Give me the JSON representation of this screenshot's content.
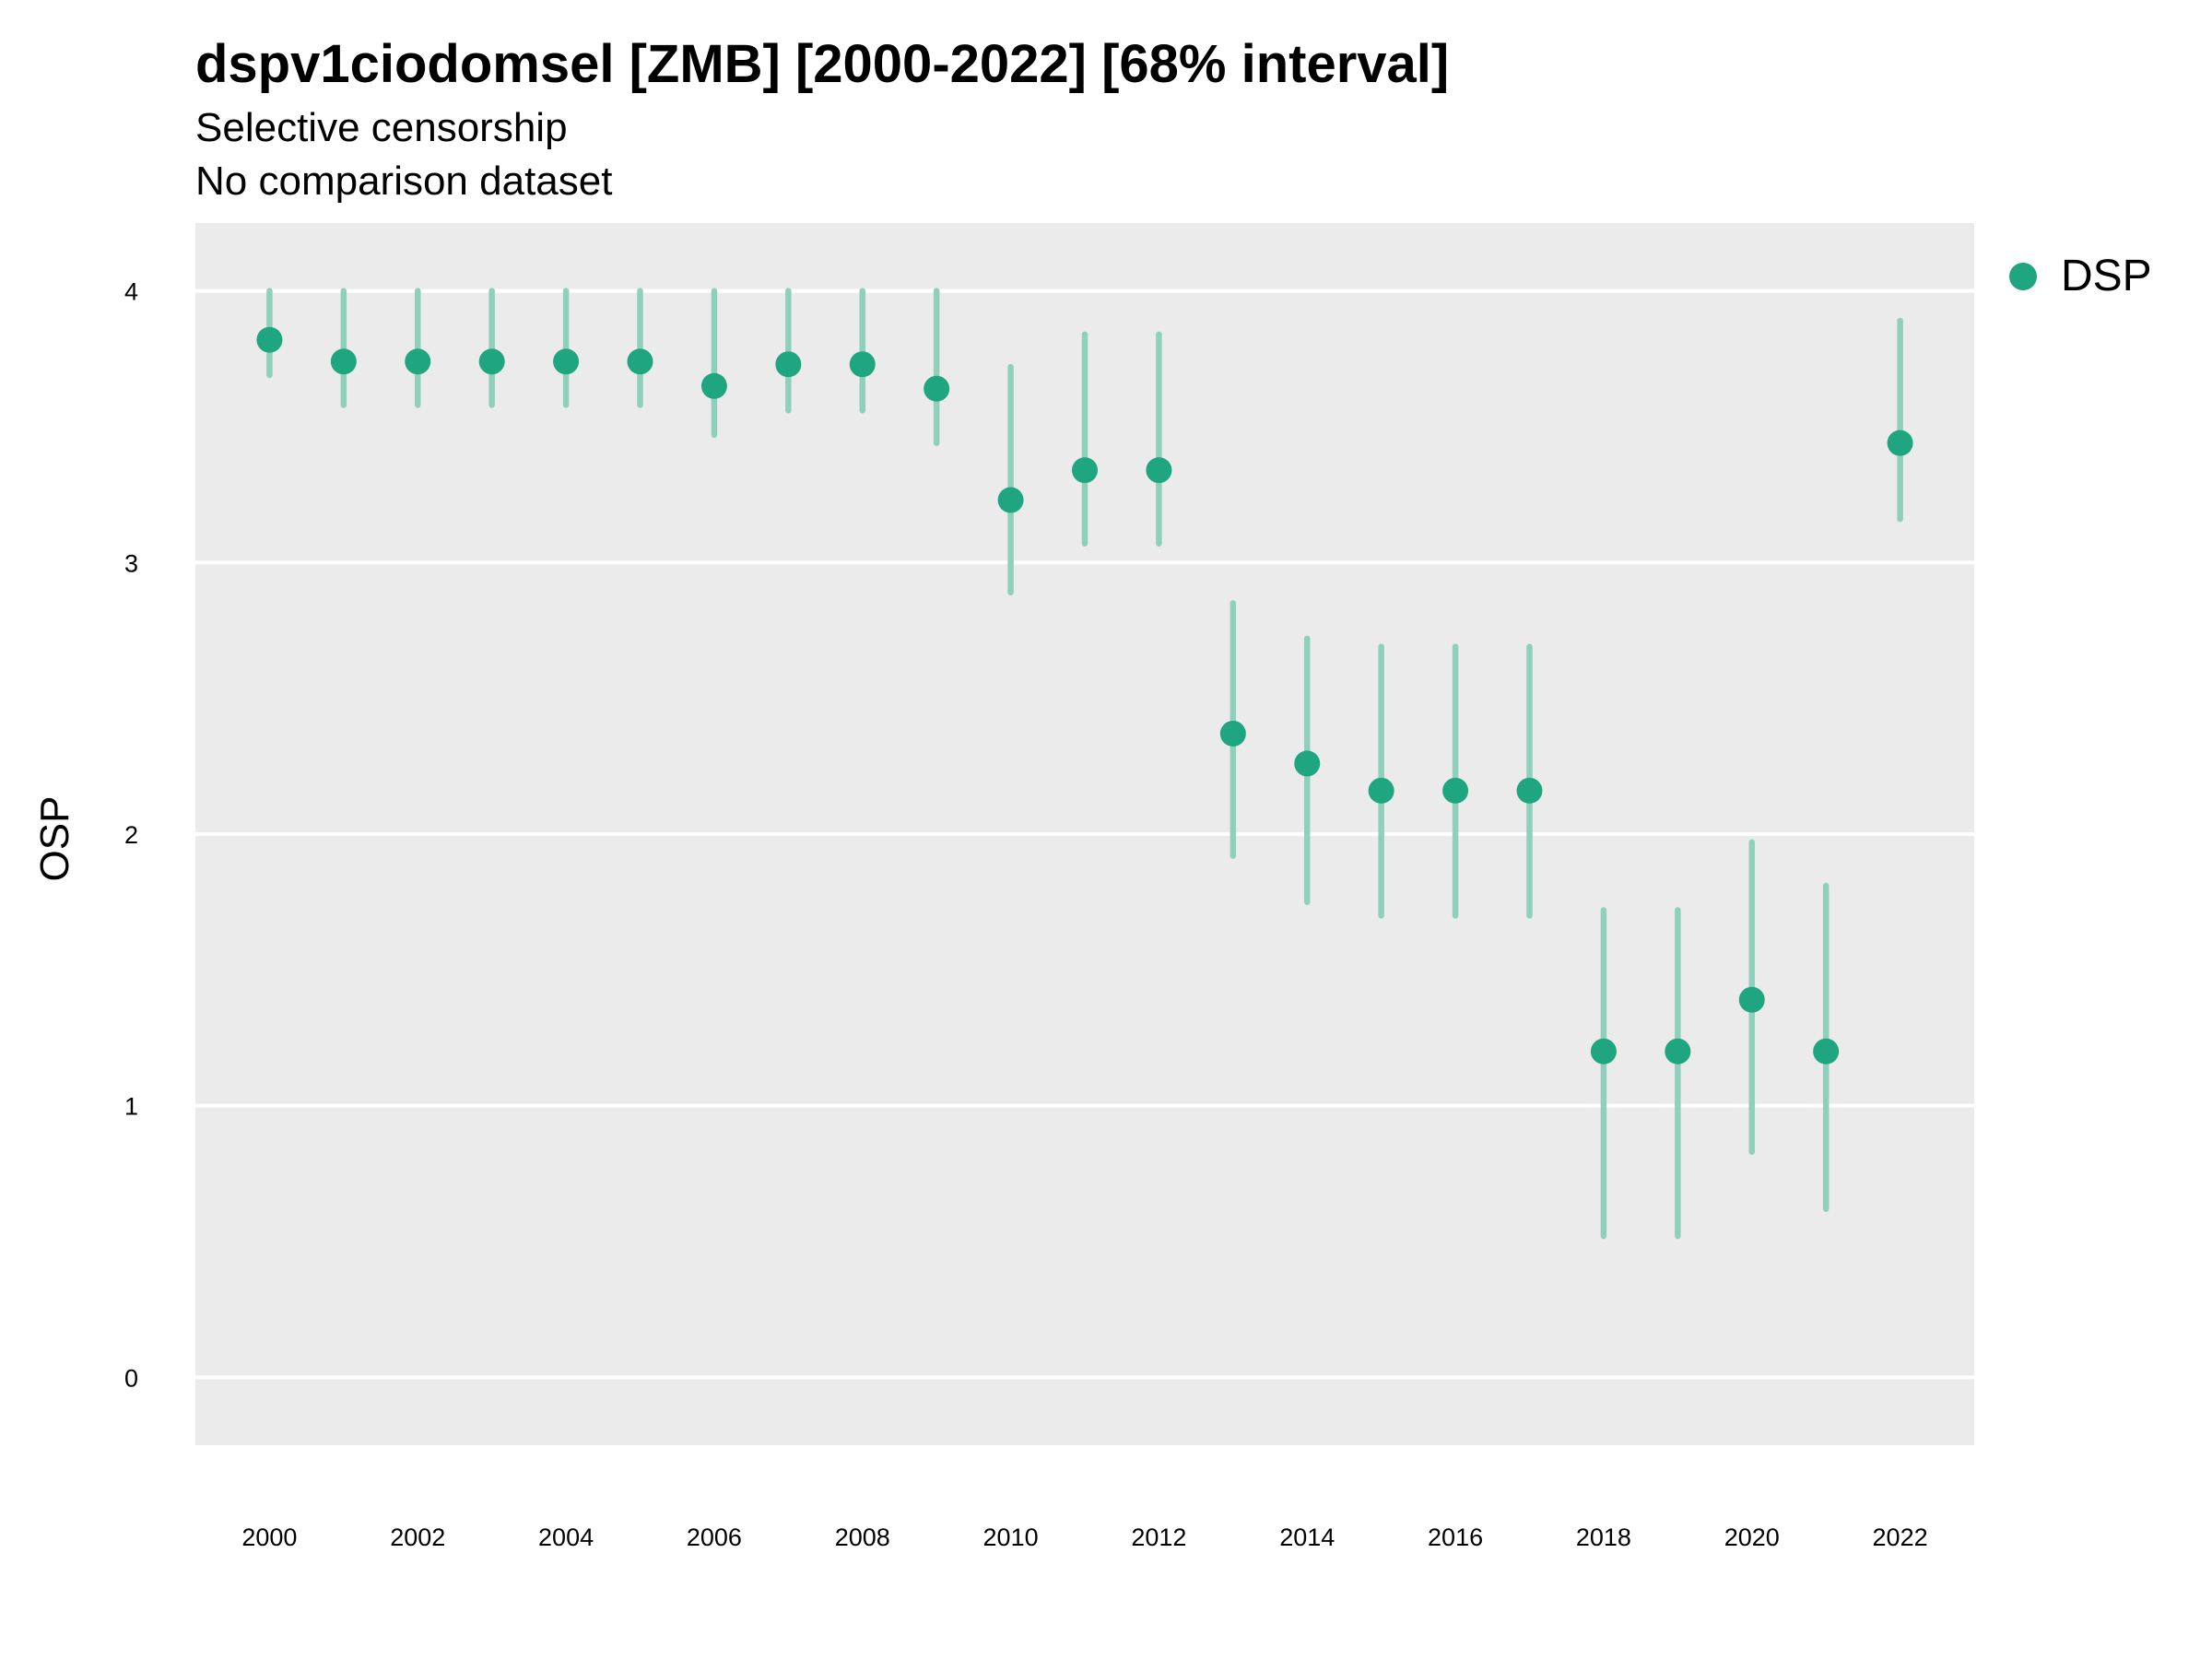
{
  "chart_data": {
    "type": "scatter",
    "title": "dspv1ciodomsel [ZMB] [2000-2022] [68% interval]",
    "subtitle": [
      "Selective censorship",
      "No comparison dataset"
    ],
    "xlabel": "",
    "ylabel": "OSP",
    "xlim": [
      1999.0,
      2023.0
    ],
    "ylim": [
      -0.25,
      4.25
    ],
    "grid": true,
    "legend_position": "right",
    "x_ticks": [
      2000,
      2002,
      2004,
      2006,
      2008,
      2010,
      2012,
      2014,
      2016,
      2018,
      2020,
      2022
    ],
    "y_ticks": [
      0,
      1,
      2,
      3,
      4
    ],
    "series": [
      {
        "name": "DSP",
        "color": "#1fa681",
        "interval_color": "#8fd0bd",
        "points": [
          {
            "x": 2000,
            "y": 3.82,
            "low": 3.69,
            "high": 4.0
          },
          {
            "x": 2001,
            "y": 3.74,
            "low": 3.58,
            "high": 4.0
          },
          {
            "x": 2002,
            "y": 3.74,
            "low": 3.58,
            "high": 4.0
          },
          {
            "x": 2003,
            "y": 3.74,
            "low": 3.58,
            "high": 4.0
          },
          {
            "x": 2004,
            "y": 3.74,
            "low": 3.58,
            "high": 4.0
          },
          {
            "x": 2005,
            "y": 3.74,
            "low": 3.58,
            "high": 4.0
          },
          {
            "x": 2006,
            "y": 3.65,
            "low": 3.47,
            "high": 4.0
          },
          {
            "x": 2007,
            "y": 3.73,
            "low": 3.56,
            "high": 4.0
          },
          {
            "x": 2008,
            "y": 3.73,
            "low": 3.56,
            "high": 4.0
          },
          {
            "x": 2009,
            "y": 3.64,
            "low": 3.44,
            "high": 4.0
          },
          {
            "x": 2010,
            "y": 3.23,
            "low": 2.89,
            "high": 3.72
          },
          {
            "x": 2011,
            "y": 3.34,
            "low": 3.07,
            "high": 3.84
          },
          {
            "x": 2012,
            "y": 3.34,
            "low": 3.07,
            "high": 3.84
          },
          {
            "x": 2013,
            "y": 2.37,
            "low": 1.92,
            "high": 2.85
          },
          {
            "x": 2014,
            "y": 2.26,
            "low": 1.75,
            "high": 2.72
          },
          {
            "x": 2015,
            "y": 2.16,
            "low": 1.7,
            "high": 2.69
          },
          {
            "x": 2016,
            "y": 2.16,
            "low": 1.7,
            "high": 2.69
          },
          {
            "x": 2017,
            "y": 2.16,
            "low": 1.7,
            "high": 2.69
          },
          {
            "x": 2018,
            "y": 1.2,
            "low": 0.52,
            "high": 1.72
          },
          {
            "x": 2019,
            "y": 1.2,
            "low": 0.52,
            "high": 1.72
          },
          {
            "x": 2020,
            "y": 1.39,
            "low": 0.83,
            "high": 1.97
          },
          {
            "x": 2021,
            "y": 1.2,
            "low": 0.62,
            "high": 1.81
          },
          {
            "x": 2022,
            "y": 3.44,
            "low": 3.16,
            "high": 3.89
          }
        ]
      }
    ]
  }
}
